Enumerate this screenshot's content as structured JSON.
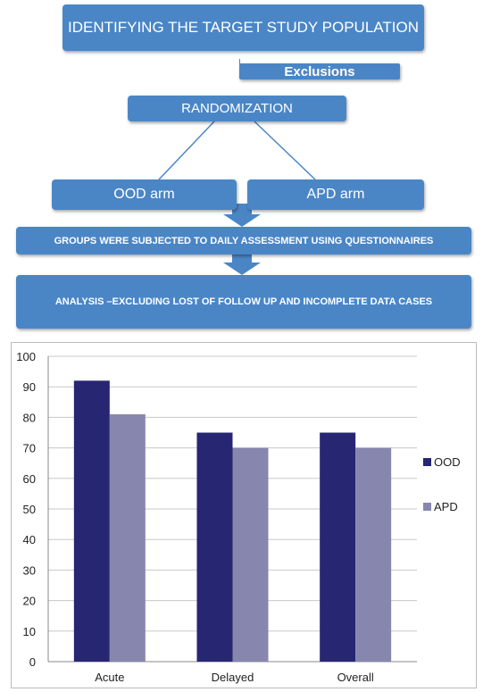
{
  "diagram": {
    "population": "IDENTIFYING THE TARGET STUDY POPULATION",
    "exclusions": "Exclusions",
    "randomization": "RANDOMIZATION",
    "ood_arm": "OOD arm",
    "apd_arm": "APD arm",
    "assessment": "GROUPS WERE SUBJECTED TO DAILY ASSESSMENT USING QUESTIONNAIRES",
    "analysis": "ANALYSIS –EXCLUDING LOST OF FOLLOW UP  AND  INCOMPLETE DATA CASES",
    "box_color": "#4a86c6"
  },
  "chart_data": {
    "type": "bar",
    "categories": [
      "Acute",
      "Delayed",
      "Overall"
    ],
    "series": [
      {
        "name": "OOD",
        "values": [
          92,
          75,
          75
        ],
        "color": "#262673"
      },
      {
        "name": "APD",
        "values": [
          81,
          70,
          70
        ],
        "color": "#8686ae"
      }
    ],
    "yticks": [
      "0",
      "10",
      "20",
      "30",
      "40",
      "50",
      "60",
      "70",
      "80",
      "90",
      "100"
    ],
    "ylim": [
      0,
      100
    ],
    "grid": true,
    "legend": "right",
    "title": "",
    "xlabel": "",
    "ylabel": ""
  }
}
